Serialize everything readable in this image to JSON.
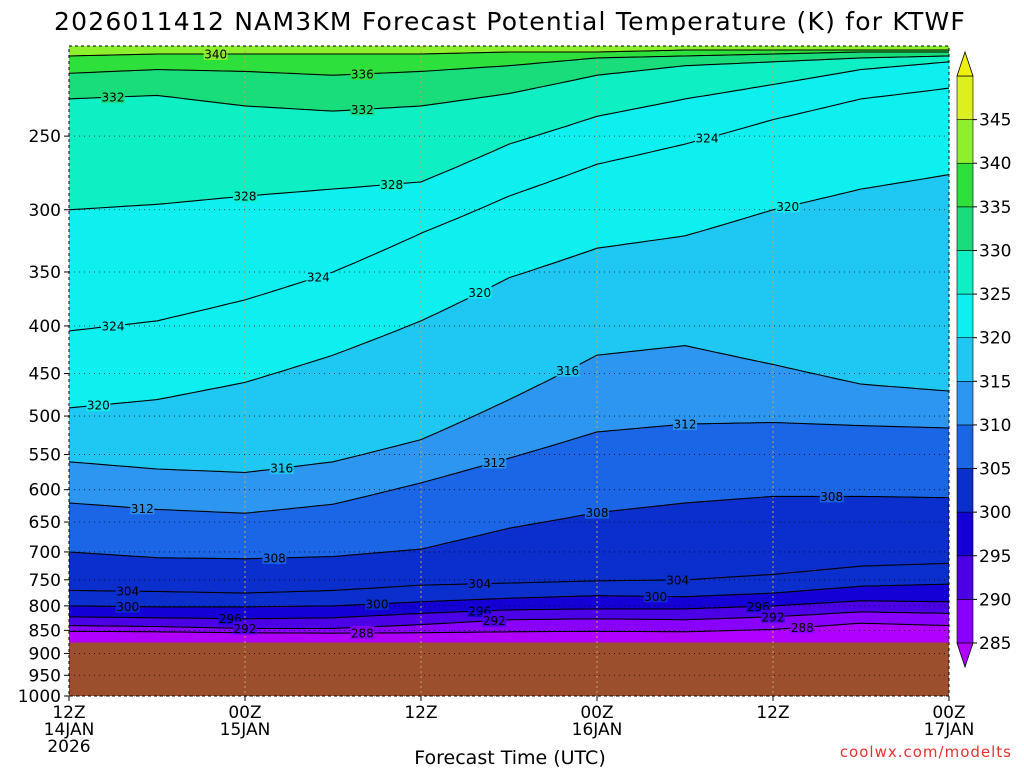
{
  "chart_data": {
    "type": "contour-fill",
    "title": "2026011412 NAM3KM Forecast Potential Temperature (K) for KTWF",
    "xlabel": "Forecast Time (UTC)",
    "ylabel": "",
    "y_axis": {
      "scale": "log-pressure",
      "range_hPa": [
        1000,
        200
      ],
      "ticks": [
        250,
        300,
        350,
        400,
        450,
        500,
        550,
        600,
        650,
        700,
        750,
        800,
        850,
        900,
        950,
        1000
      ]
    },
    "x_axis": {
      "range_hours": [
        0,
        60
      ],
      "ticks": [
        {
          "hour": 0,
          "lines": [
            "12Z",
            "14JAN",
            "2026"
          ]
        },
        {
          "hour": 12,
          "lines": [
            "00Z",
            "15JAN"
          ]
        },
        {
          "hour": 24,
          "lines": [
            "12Z"
          ]
        },
        {
          "hour": 36,
          "lines": [
            "00Z",
            "16JAN"
          ]
        },
        {
          "hour": 48,
          "lines": [
            "12Z"
          ]
        },
        {
          "hour": 60,
          "lines": [
            "00Z",
            "17JAN"
          ]
        }
      ]
    },
    "grid": true,
    "terrain": {
      "surface_hPa": 876,
      "color": "#9b4f2c"
    },
    "colorbar": {
      "position": "right",
      "levels": [
        285,
        290,
        295,
        300,
        305,
        310,
        315,
        320,
        325,
        330,
        335,
        340,
        345
      ],
      "colors": [
        "#8a00ff",
        "#4b00e6",
        "#1400d4",
        "#0a2fcc",
        "#1a66e6",
        "#2d96f0",
        "#1ec8f2",
        "#0ef0f0",
        "#0ef0c4",
        "#19dc7a",
        "#2ee03c",
        "#8ef02c",
        "#dcf020"
      ],
      "lower_extension_color": "#b000ff",
      "upper_extension_color": "#f0f010"
    },
    "isentropes_hPa": {
      "times_h": [
        0,
        6,
        12,
        18,
        24,
        30,
        36,
        42,
        48,
        54,
        60
      ],
      "series": [
        {
          "theta": 288,
          "p": [
            852,
            853,
            855,
            856,
            855,
            853,
            852,
            853,
            848,
            835,
            840
          ]
        },
        {
          "theta": 292,
          "p": [
            840,
            842,
            846,
            846,
            838,
            828,
            826,
            828,
            822,
            812,
            815
          ]
        },
        {
          "theta": 296,
          "p": [
            822,
            824,
            826,
            824,
            815,
            808,
            806,
            806,
            800,
            790,
            792
          ]
        },
        {
          "theta": 300,
          "p": [
            800,
            802,
            802,
            800,
            792,
            785,
            780,
            782,
            775,
            762,
            758
          ]
        },
        {
          "theta": 304,
          "p": [
            770,
            772,
            775,
            770,
            760,
            756,
            752,
            750,
            740,
            725,
            720
          ]
        },
        {
          "theta": 308,
          "p": [
            700,
            710,
            712,
            708,
            695,
            660,
            635,
            620,
            610,
            610,
            612
          ]
        },
        {
          "theta": 312,
          "p": [
            620,
            630,
            636,
            622,
            590,
            555,
            520,
            510,
            508,
            512,
            515
          ]
        },
        {
          "theta": 316,
          "p": [
            560,
            570,
            575,
            560,
            530,
            480,
            430,
            420,
            440,
            462,
            470
          ]
        },
        {
          "theta": 320,
          "p": [
            490,
            480,
            460,
            430,
            395,
            355,
            330,
            320,
            300,
            285,
            275
          ]
        },
        {
          "theta": 324,
          "p": [
            405,
            395,
            375,
            350,
            318,
            290,
            268,
            255,
            240,
            228,
            222
          ]
        },
        {
          "theta": 328,
          "p": [
            300,
            296,
            290,
            285,
            280,
            255,
            238,
            228,
            220,
            212,
            208
          ]
        },
        {
          "theta": 332,
          "p": [
            228,
            226,
            232,
            235,
            232,
            225,
            215,
            210,
            208,
            206,
            205
          ]
        },
        {
          "theta": 336,
          "p": [
            214,
            212,
            213,
            215,
            213,
            210,
            206,
            205,
            204,
            203,
            203
          ]
        },
        {
          "theta": 340,
          "p": [
            205,
            204,
            204,
            204,
            204,
            203,
            203,
            202,
            202,
            202,
            202
          ]
        }
      ],
      "labels": [
        {
          "theta": 340,
          "h": 10.0
        },
        {
          "theta": 336,
          "h": 20.0
        },
        {
          "theta": 332,
          "h": 3.0
        },
        {
          "theta": 332,
          "h": 20.0
        },
        {
          "theta": 328,
          "h": 12.0
        },
        {
          "theta": 328,
          "h": 22.0
        },
        {
          "theta": 324,
          "h": 3.0
        },
        {
          "theta": 324,
          "h": 17.0
        },
        {
          "theta": 324,
          "h": 43.5
        },
        {
          "theta": 320,
          "h": 2.0
        },
        {
          "theta": 320,
          "h": 28.0
        },
        {
          "theta": 320,
          "h": 49.0
        },
        {
          "theta": 316,
          "h": 34.0
        },
        {
          "theta": 316,
          "h": 14.5
        },
        {
          "theta": 312,
          "h": 42.0
        },
        {
          "theta": 312,
          "h": 5.0
        },
        {
          "theta": 312,
          "h": 29.0
        },
        {
          "theta": 308,
          "h": 14.0
        },
        {
          "theta": 308,
          "h": 36.0
        },
        {
          "theta": 308,
          "h": 52.0
        },
        {
          "theta": 304,
          "h": 4.0
        },
        {
          "theta": 304,
          "h": 28.0
        },
        {
          "theta": 304,
          "h": 41.5
        },
        {
          "theta": 300,
          "h": 4.0
        },
        {
          "theta": 300,
          "h": 21.0
        },
        {
          "theta": 300,
          "h": 40.0
        },
        {
          "theta": 296,
          "h": 11.0
        },
        {
          "theta": 296,
          "h": 28.0
        },
        {
          "theta": 296,
          "h": 47.0
        },
        {
          "theta": 292,
          "h": 12.0
        },
        {
          "theta": 292,
          "h": 29.0
        },
        {
          "theta": 292,
          "h": 48.0
        },
        {
          "theta": 288,
          "h": 20.0
        },
        {
          "theta": 288,
          "h": 50.0
        }
      ]
    },
    "credit": "coolwx.com/modelts"
  }
}
